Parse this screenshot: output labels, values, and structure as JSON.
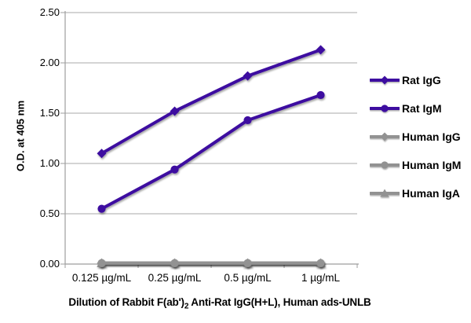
{
  "chart_data": {
    "type": "line",
    "title": "Dilution of Rabbit F(ab')2 Anti-Rat IgG(H+L), Human ads-UNLB",
    "xlabel": "Dilution of Rabbit F(ab')2 Anti-Rat IgG(H+L), Human ads-UNLB",
    "ylabel": "O.D. at 405 nm",
    "categories": [
      "0.125 µg/mL",
      "0.25 µg/mL",
      "0.5 µg/mL",
      "1 µg/mL"
    ],
    "ylim": [
      0,
      2.5
    ],
    "yticks": [
      "0.00",
      "0.50",
      "1.00",
      "1.50",
      "2.00",
      "2.50"
    ],
    "grid": true,
    "legend_position": "right",
    "series": [
      {
        "name": "Rat IgG",
        "marker": "diamond",
        "color": "#3E0EA0",
        "values": [
          1.1,
          1.52,
          1.87,
          2.13
        ]
      },
      {
        "name": "Rat IgM",
        "marker": "circle",
        "color": "#3E0EA0",
        "values": [
          0.55,
          0.94,
          1.43,
          1.68
        ]
      },
      {
        "name": "Human IgG",
        "marker": "diamond",
        "color": "#929292",
        "values": [
          0.01,
          0.01,
          0.01,
          0.01
        ]
      },
      {
        "name": "Human IgM",
        "marker": "circle",
        "color": "#929292",
        "values": [
          0.01,
          0.01,
          0.01,
          0.01
        ]
      },
      {
        "name": "Human IgA",
        "marker": "triangle",
        "color": "#929292",
        "values": [
          0.01,
          0.01,
          0.01,
          0.01
        ]
      }
    ]
  },
  "title_parts": {
    "pre": "Dilution of Rabbit F(ab')",
    "sub": "2",
    "post": " Anti-Rat IgG(H+L), Human ads-UNLB"
  },
  "colors": {
    "grid": "#A8A8A8",
    "axis": "#9E9E9E",
    "text": "#000000",
    "background": "#FFFFFF"
  }
}
